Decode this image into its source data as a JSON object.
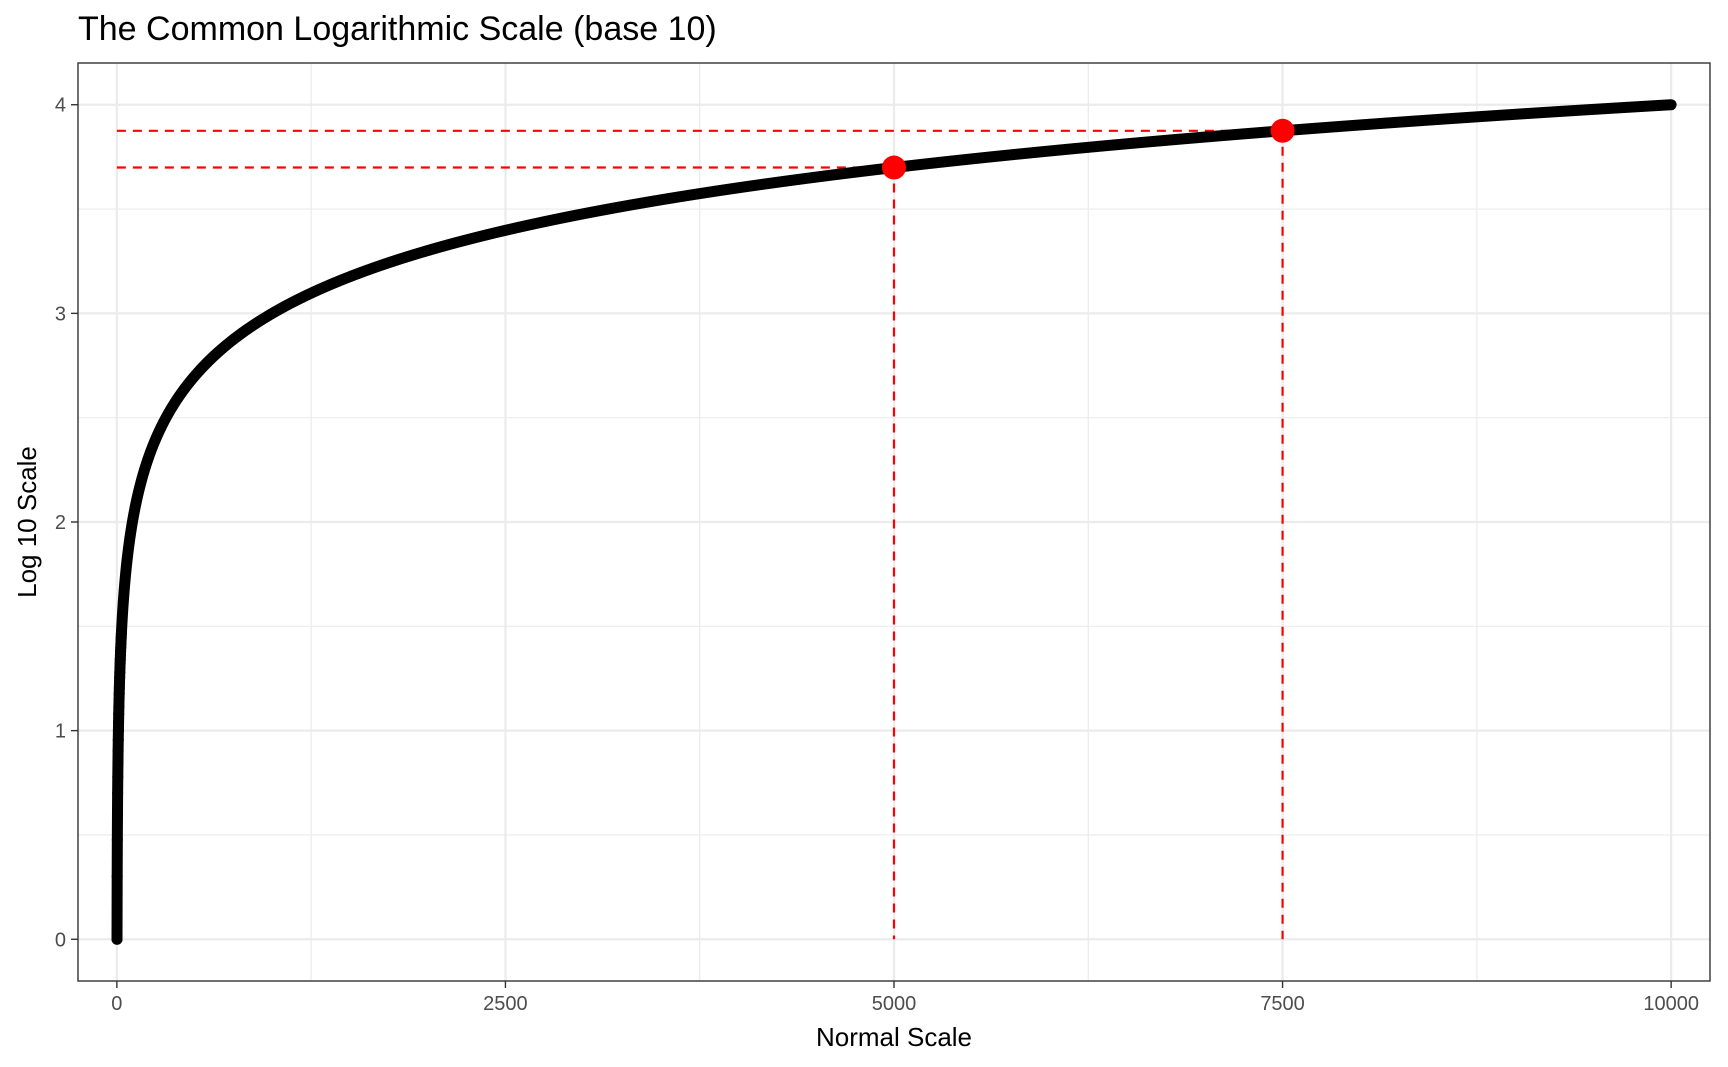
{
  "chart_data": {
    "type": "scatter",
    "title": "The Common Logarithmic Scale (base 10)",
    "xlabel": "Normal Scale",
    "ylabel": "Log 10 Scale",
    "xlim": [
      -250,
      10250
    ],
    "ylim": [
      -0.2,
      4.2
    ],
    "x_ticks": [
      0,
      2500,
      5000,
      7500,
      10000
    ],
    "x_tick_labels": [
      "0",
      "2500",
      "5000",
      "7500",
      "10000"
    ],
    "y_ticks": [
      0,
      1,
      2,
      3,
      4
    ],
    "y_tick_labels": [
      "0",
      "1",
      "2",
      "3",
      "4"
    ],
    "grid": true,
    "legend": "none",
    "series": [
      {
        "function": "log10(x)",
        "x_range": [
          1,
          10000
        ],
        "x_step": 1,
        "color": "#000000",
        "style": "line-with-points"
      }
    ],
    "highlighted_points": [
      {
        "x": 5000,
        "y": 3.699,
        "color": "#ff0000"
      },
      {
        "x": 7500,
        "y": 3.875,
        "color": "#ff0000"
      }
    ],
    "reference_lines": {
      "color": "#ff0000",
      "style": "dashed"
    }
  }
}
